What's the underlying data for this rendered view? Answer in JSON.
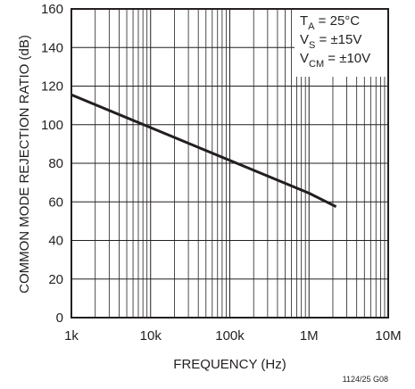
{
  "chart_data": {
    "type": "line",
    "xlabel": "FREQUENCY (Hz)",
    "ylabel": "COMMON MODE REJECTION RATIO (dB)",
    "xscale": "log",
    "xlim": [
      1000,
      10000000
    ],
    "ylim": [
      0,
      160
    ],
    "x_ticks": [
      1000,
      10000,
      100000,
      1000000,
      10000000
    ],
    "x_tick_labels": [
      "1k",
      "10k",
      "100k",
      "1M",
      "10M"
    ],
    "y_ticks": [
      0,
      20,
      40,
      60,
      80,
      100,
      120,
      140,
      160
    ],
    "y_tick_labels": [
      "0",
      "20",
      "40",
      "60",
      "80",
      "100",
      "120",
      "140",
      "160"
    ],
    "grid": true,
    "conditions": [
      {
        "main": "T",
        "sub": "A",
        "rest": " = 25°C"
      },
      {
        "main": "V",
        "sub": "S",
        "rest": " = ±15V"
      },
      {
        "main": "V",
        "sub": "CM",
        "rest": " = ±10V"
      }
    ],
    "conditions_placement": "top-right",
    "series": [
      {
        "x": [
          1000,
          10000,
          100000,
          1000000,
          2200000
        ],
        "y": [
          115.5,
          98.5,
          81.5,
          64.5,
          57.5
        ]
      }
    ],
    "doc_code": "1124/25 G08",
    "line_color": "#231f20"
  }
}
